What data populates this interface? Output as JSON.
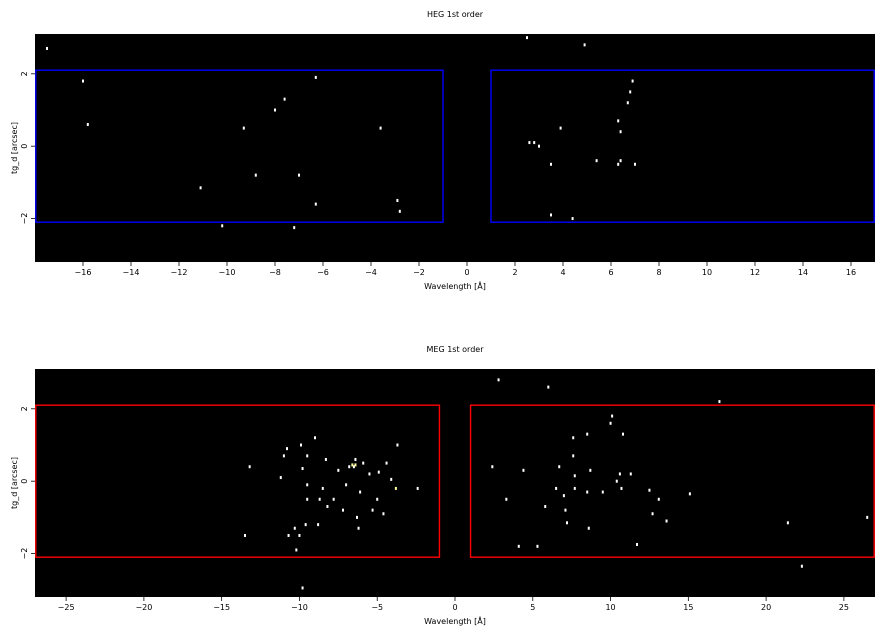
{
  "chart_data": [
    {
      "type": "scatter",
      "title": "HEG 1st order",
      "xlabel": "Wavelength [Å]",
      "ylabel": "tg_d [arcsec]",
      "xlim": [
        -18,
        17
      ],
      "ylim": [
        -3.2,
        3.1
      ],
      "xticks": [
        -16,
        -14,
        -12,
        -10,
        -8,
        -6,
        -4,
        -2,
        0,
        2,
        4,
        6,
        8,
        10,
        12,
        14,
        16
      ],
      "yticks": [
        -2,
        0,
        2
      ],
      "background": "#000000",
      "point_color": "#ffffff",
      "region_color": "#0000ff",
      "regions": [
        {
          "x": [
            -18,
            -1
          ],
          "y": [
            -2.1,
            2.1
          ]
        },
        {
          "x": [
            1,
            17
          ],
          "y": [
            -2.1,
            2.1
          ]
        }
      ],
      "points": [
        [
          -17.5,
          2.7
        ],
        [
          -16,
          1.8
        ],
        [
          -15.8,
          0.6
        ],
        [
          -11.1,
          -1.15
        ],
        [
          -10.2,
          -2.2
        ],
        [
          -9.3,
          0.5
        ],
        [
          -8.8,
          -0.8
        ],
        [
          -8,
          1.0
        ],
        [
          -7.6,
          1.3
        ],
        [
          -7.2,
          -2.25
        ],
        [
          -7,
          -0.8
        ],
        [
          -6.3,
          1.9
        ],
        [
          -6.3,
          -1.6
        ],
        [
          -3.6,
          0.5
        ],
        [
          -2.9,
          -1.5
        ],
        [
          -2.8,
          -1.8
        ],
        [
          2.5,
          3.0
        ],
        [
          2.6,
          0.1
        ],
        [
          2.8,
          0.1
        ],
        [
          3.0,
          0.0
        ],
        [
          3.5,
          -0.5
        ],
        [
          3.5,
          -1.9
        ],
        [
          3.9,
          0.5
        ],
        [
          4.4,
          -2.0
        ],
        [
          4.9,
          2.8
        ],
        [
          5.4,
          -0.4
        ],
        [
          6.3,
          0.7
        ],
        [
          6.3,
          -0.5
        ],
        [
          6.4,
          0.4
        ],
        [
          6.4,
          -0.4
        ],
        [
          6.7,
          1.2
        ],
        [
          6.8,
          1.5
        ],
        [
          6.9,
          1.8
        ],
        [
          7.0,
          -0.5
        ]
      ]
    },
    {
      "type": "scatter",
      "title": "MEG 1st order",
      "xlabel": "Wavelength [Å]",
      "ylabel": "tg_d [arcsec]",
      "xlim": [
        -27,
        27
      ],
      "ylim": [
        -3.2,
        3.1
      ],
      "xticks": [
        -25,
        -20,
        -15,
        -10,
        -5,
        0,
        5,
        10,
        15,
        20,
        25
      ],
      "yticks": [
        -2,
        0,
        2
      ],
      "background": "#000000",
      "point_color": "#ffffff",
      "highlight_color": "#ffff99",
      "region_color": "#ff0000",
      "regions": [
        {
          "x": [
            -27,
            -1
          ],
          "y": [
            -2.1,
            2.1
          ]
        },
        {
          "x": [
            1,
            27
          ],
          "y": [
            -2.1,
            2.1
          ]
        }
      ],
      "points": [
        [
          -13.5,
          -1.5
        ],
        [
          -13.2,
          0.4
        ],
        [
          -11.2,
          0.1
        ],
        [
          -11,
          0.7
        ],
        [
          -10.8,
          0.9
        ],
        [
          -10.7,
          -1.5
        ],
        [
          -10.3,
          -1.3
        ],
        [
          -10.2,
          -1.9
        ],
        [
          -10,
          -1.5
        ],
        [
          -9.9,
          1.0
        ],
        [
          -9.8,
          -2.95
        ],
        [
          -9.8,
          0.35
        ],
        [
          -9.6,
          -1.2
        ],
        [
          -9.5,
          -0.5
        ],
        [
          -9.5,
          -0.1
        ],
        [
          -9.5,
          0.7
        ],
        [
          -9,
          1.2
        ],
        [
          -8.8,
          -1.2
        ],
        [
          -8.7,
          -0.5
        ],
        [
          -8.5,
          -0.2
        ],
        [
          -8.3,
          0.6
        ],
        [
          -8.2,
          -0.7
        ],
        [
          -7.8,
          -0.5
        ],
        [
          -7.5,
          0.3
        ],
        [
          -7.2,
          -0.8
        ],
        [
          -7,
          -0.1
        ],
        [
          -6.8,
          0.4
        ],
        [
          -6.5,
          0.4
        ],
        [
          -6.4,
          0.6
        ],
        [
          -6.3,
          -1.0
        ],
        [
          -6.2,
          -1.3
        ],
        [
          -6.1,
          -0.3
        ],
        [
          -5.9,
          0.5
        ],
        [
          -5.5,
          0.2
        ],
        [
          -5.3,
          -0.8
        ],
        [
          -5,
          -0.5
        ],
        [
          -4.9,
          0.25
        ],
        [
          -4.6,
          -0.9
        ],
        [
          -4.4,
          0.5
        ],
        [
          -4.1,
          0.05
        ],
        [
          -3.7,
          1.0
        ],
        [
          -2.4,
          -0.2
        ],
        [
          2.4,
          0.4
        ],
        [
          2.8,
          2.8
        ],
        [
          3.3,
          -0.5
        ],
        [
          4.1,
          -1.8
        ],
        [
          4.4,
          0.3
        ],
        [
          5.3,
          -1.8
        ],
        [
          5.8,
          -0.7
        ],
        [
          6.0,
          2.6
        ],
        [
          6.5,
          -0.2
        ],
        [
          6.7,
          0.4
        ],
        [
          7.0,
          -0.4
        ],
        [
          7.1,
          -0.8
        ],
        [
          7.2,
          -1.15
        ],
        [
          7.6,
          1.2
        ],
        [
          7.6,
          0.7
        ],
        [
          7.7,
          -0.2
        ],
        [
          7.7,
          0.15
        ],
        [
          8.5,
          1.3
        ],
        [
          8.5,
          -0.3
        ],
        [
          8.6,
          -1.3
        ],
        [
          8.7,
          0.3
        ],
        [
          9.5,
          -0.3
        ],
        [
          10.0,
          1.6
        ],
        [
          10.1,
          1.8
        ],
        [
          10.4,
          0.0
        ],
        [
          10.6,
          0.2
        ],
        [
          10.7,
          -0.2
        ],
        [
          10.8,
          1.3
        ],
        [
          11.3,
          0.2
        ],
        [
          11.7,
          -1.75
        ],
        [
          12.5,
          -0.25
        ],
        [
          12.7,
          -0.9
        ],
        [
          13.1,
          -0.5
        ],
        [
          13.6,
          -1.1
        ],
        [
          15.1,
          -0.35
        ],
        [
          17.0,
          2.2
        ],
        [
          21.4,
          -1.15
        ],
        [
          22.3,
          -2.35
        ],
        [
          26.5,
          -1.0
        ]
      ],
      "highlight_points": [
        [
          -6.6,
          0.45
        ],
        [
          -6.4,
          0.45
        ],
        [
          -3.8,
          -0.2
        ]
      ]
    }
  ]
}
